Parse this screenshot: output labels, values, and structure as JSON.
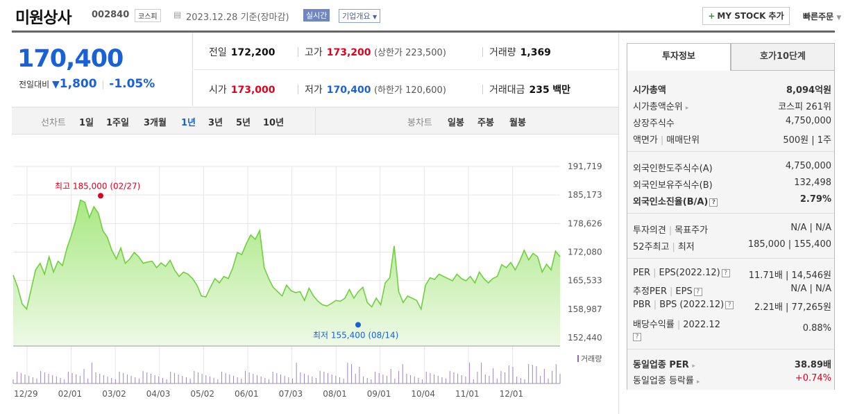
{
  "header": {
    "name": "미원상사",
    "code": "002840",
    "market": "코스피",
    "date": "2023.12.28",
    "date_suffix": "기준(장마감)",
    "realtime": "실시간",
    "overview": "기업개요",
    "mystock": "MY STOCK 추가",
    "quick_order": "빠른주문"
  },
  "price": {
    "current": "170,400",
    "change_label": "전일대비",
    "change_value": "1,800",
    "change_pct": "-1.05%",
    "prev_label": "전일",
    "prev": "172,200",
    "high_label": "고가",
    "high": "173,200",
    "upper_limit": "(상한가 223,500)",
    "volume_label": "거래량",
    "volume": "1,369",
    "open_label": "시가",
    "open": "173,000",
    "low_label": "저가",
    "low": "170,400",
    "lower_limit": "(하한가 120,600)",
    "amount_label": "거래대금",
    "amount": "235",
    "amount_unit": "백만"
  },
  "periods": {
    "line_label": "선차트",
    "items": [
      "1일",
      "1주일",
      "3개월",
      "1년",
      "3년",
      "5년",
      "10년"
    ],
    "selected": "1년",
    "candle_label": "봉차트",
    "candles": [
      "일봉",
      "주봉",
      "월봉"
    ]
  },
  "chart_data": {
    "type": "area",
    "y_ticks": [
      "191,719",
      "185,173",
      "178,626",
      "172,080",
      "165,533",
      "158,987",
      "152,440"
    ],
    "ylim": [
      152440,
      191719
    ],
    "x_ticks": [
      "12/29",
      "02/01",
      "03/02",
      "04/03",
      "05/02",
      "06/01",
      "07/03",
      "08/01",
      "09/01",
      "10/04",
      "11/01",
      "12/01"
    ],
    "high_label": "최고 185,000 (02/27)",
    "low_label": "최저 155,400 (08/14)",
    "volume_legend": "거래량",
    "values": [
      166800,
      164000,
      160200,
      159000,
      163500,
      168000,
      169500,
      167000,
      171000,
      167500,
      170000,
      169000,
      173000,
      176000,
      179500,
      184000,
      183500,
      180000,
      182500,
      181000,
      177000,
      175500,
      172500,
      170500,
      173000,
      169500,
      170500,
      172000,
      171000,
      169500,
      169800,
      170000,
      168500,
      169600,
      168800,
      170200,
      168000,
      166500,
      167500,
      167000,
      166000,
      164500,
      162000,
      161800,
      164000,
      166000,
      165000,
      166500,
      166000,
      168500,
      172000,
      171500,
      174000,
      176000,
      175000,
      177000,
      168500,
      166000,
      164000,
      163000,
      162000,
      164500,
      163200,
      162800,
      163000,
      161000,
      163800,
      162000,
      160800,
      160000,
      159700,
      160300,
      161000,
      160800,
      161500,
      163500,
      161500,
      163000,
      164000,
      160500,
      159500,
      161500,
      160000,
      165000,
      166200,
      173500,
      163000,
      160500,
      162000,
      161500,
      161000,
      159000,
      164500,
      166200,
      165800,
      167000,
      166500,
      166000,
      165500,
      167000,
      166000,
      165500,
      166500,
      165000,
      167500,
      166000,
      165000,
      166000,
      166500,
      169200,
      168500,
      169700,
      168000,
      170000,
      172500,
      170300,
      171800,
      171000,
      167500,
      169300,
      168000,
      172300,
      171000
    ]
  },
  "panel": {
    "tab_on": "투자정보",
    "tab_off": "호가10단계",
    "market_cap_label": "시가총액",
    "market_cap": "8,094억원",
    "rank_label": "시가총액순위",
    "rank": "코스피 261위",
    "shares_label": "상장주식수",
    "shares": "4,750,000",
    "par_label": "액면가",
    "unit_label": "매매단위",
    "par_unit": "500원 | 1주",
    "foreign_limit_label": "외국인한도주식수(A)",
    "foreign_limit": "4,750,000",
    "foreign_hold_label": "외국인보유주식수(B)",
    "foreign_hold": "132,498",
    "foreign_rate_label": "외국인소진율(B/A)",
    "foreign_rate": "2.79%",
    "opinion_label": "투자의견",
    "target_label": "목표주가",
    "opinion": "N/A | N/A",
    "w52_label": "52주최고",
    "w52_low_label": "최저",
    "w52": "185,000 | 155,400",
    "per_label": "PER",
    "eps_label": "EPS(2022.12)",
    "per_eps": "11.71배 | 14,546원",
    "eper_label": "추정PER",
    "eeps_label": "EPS",
    "eper": "N/A | N/A",
    "pbr_label": "PBR",
    "bps_label": "BPS (2022.12)",
    "pbr_bps": "2.21배 | 77,265원",
    "div_label": "배당수익률",
    "div_year": "2022.12",
    "div": "0.88%",
    "ind_per_label": "동일업종 PER",
    "ind_per": "38.89배",
    "ind_chg_label": "동일업종 등락률",
    "ind_chg": "+0.74%"
  }
}
